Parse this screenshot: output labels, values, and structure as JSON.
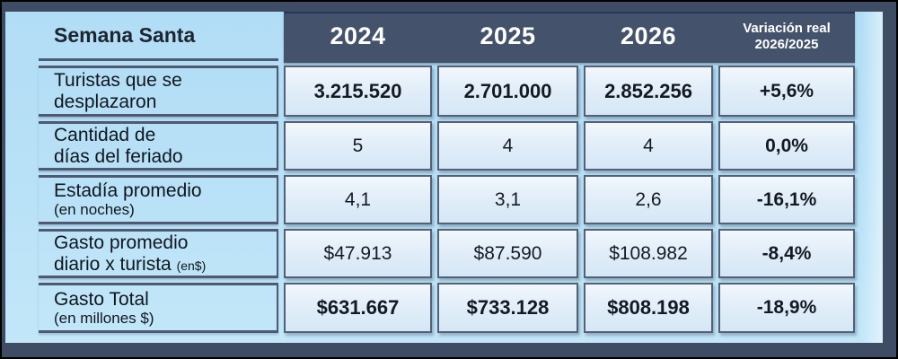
{
  "slide": {
    "title": "Semana Santa",
    "year_headers": [
      "2024",
      "2025",
      "2026"
    ],
    "variation_header": {
      "line1": "Variación real",
      "line2": "2026/2025"
    },
    "rows": [
      {
        "label_line1": "Turistas que se",
        "label_line2": "desplazaron",
        "values": [
          "3.215.520",
          "2.701.000",
          "2.852.256"
        ],
        "variation": "+5,6%"
      },
      {
        "label_line1": "Cantidad de",
        "label_line2": "días del feriado",
        "values": [
          "5",
          "4",
          "4"
        ],
        "variation": "0,0%"
      },
      {
        "label_line1": "Estadía promedio",
        "label_note": "(en noches)",
        "values": [
          "4,1",
          "3,1",
          "2,6"
        ],
        "variation": "-16,1%"
      },
      {
        "label_line1": "Gasto promedio",
        "label_line2": "diario x turista",
        "label_note_inline": "(en$)",
        "values": [
          "$47.913",
          "$87.590",
          "$108.982"
        ],
        "variation": "-8,4%"
      },
      {
        "label_line1": "Gasto Total",
        "label_note": "(en millones $)",
        "values": [
          "$631.667",
          "$733.128",
          "$808.198"
        ],
        "variation": "-18,9%"
      }
    ],
    "colors": {
      "frame": "#3e4c64",
      "header_bg": "#44526b",
      "slide_bg_top": "#b2ddf6",
      "slide_bg_bottom": "#c3e7f9",
      "cell_border": "#546076",
      "grid_line": "#4d5a72",
      "cell_bg_top": "#f2f7fc",
      "cell_bg_bottom": "#d5e7f6",
      "header_text": "#ffffff",
      "body_text": "#141a24"
    }
  }
}
